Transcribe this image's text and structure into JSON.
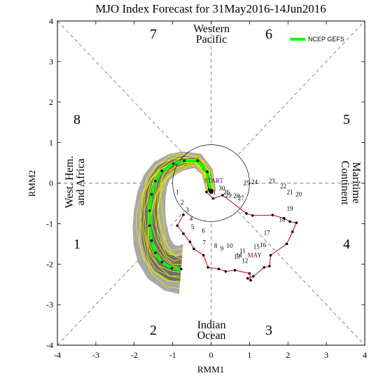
{
  "chart_data": {
    "type": "line",
    "title": "MJO Index Forecast for 31May2016-14Jun2016",
    "xlabel": "RMM1",
    "ylabel": "RMM2",
    "xlim": [
      -4,
      4
    ],
    "ylim": [
      -4,
      4
    ],
    "x_ticks": [
      "-4",
      "-3",
      "-2",
      "-1",
      "0",
      "1",
      "2",
      "3",
      "4"
    ],
    "y_ticks": [
      "-4",
      "-3",
      "-2",
      "-1",
      "0",
      "1",
      "2",
      "3",
      "4"
    ],
    "phases": [
      "1",
      "2",
      "3",
      "4",
      "5",
      "6",
      "7",
      "8"
    ],
    "regions": {
      "top": [
        "Western",
        "Pacific"
      ],
      "bottom": [
        "Indian",
        "Ocean"
      ],
      "left": [
        "West. Hem.",
        "and Africa"
      ],
      "right": [
        "Maritime",
        "Continent"
      ]
    },
    "amplitude_circle_radius": 1,
    "legend": {
      "label": "NCEP GEFS",
      "position": "top-right",
      "color": "#00ff00"
    },
    "colors": {
      "observed": "#cc0000",
      "forecast": "#00ff00",
      "members": "#e6e600",
      "spread_outer": "#a8a8a8",
      "spread_inner": "#6e6e6e",
      "start": "#5a0080",
      "month_label": "#8b0000"
    },
    "observed_path": {
      "month_label": "MAY",
      "start_label": "START",
      "points": [
        {
          "day": "1",
          "x": -0.72,
          "y": -0.78
        },
        {
          "day": "2",
          "x": -0.88,
          "y": -1.05
        },
        {
          "day": "3",
          "x": -0.72,
          "y": -1.25
        },
        {
          "day": "4",
          "x": -0.55,
          "y": -1.45
        },
        {
          "day": "5",
          "x": -0.45,
          "y": -1.62
        },
        {
          "day": "6",
          "x": -0.2,
          "y": -1.78
        },
        {
          "day": "7",
          "x": -0.08,
          "y": -2.08
        },
        {
          "day": "8",
          "x": 0.2,
          "y": -2.12
        },
        {
          "day": "9",
          "x": 0.38,
          "y": -2.18
        },
        {
          "day": "10",
          "x": 0.62,
          "y": -2.15
        },
        {
          "day": "11",
          "x": 1.0,
          "y": -2.23
        },
        {
          "day": "12",
          "x": 1.03,
          "y": -2.4
        },
        {
          "day": "13",
          "x": 0.95,
          "y": -2.35
        },
        {
          "day": "14",
          "x": 1.1,
          "y": -2.3
        },
        {
          "day": "15",
          "x": 1.38,
          "y": -2.08
        },
        {
          "day": "16",
          "x": 1.52,
          "y": -2.05
        },
        {
          "day": "17",
          "x": 1.55,
          "y": -1.78
        },
        {
          "day": "18",
          "x": 1.97,
          "y": -1.5
        },
        {
          "day": "19",
          "x": 2.12,
          "y": -1.2
        },
        {
          "day": "20",
          "x": 2.22,
          "y": -0.98
        },
        {
          "day": "21",
          "x": 2.05,
          "y": -0.95
        },
        {
          "day": "22",
          "x": 1.9,
          "y": -0.87
        },
        {
          "day": "23",
          "x": 1.6,
          "y": -0.79
        },
        {
          "day": "24",
          "x": 1.08,
          "y": -0.8
        },
        {
          "day": "25",
          "x": 0.92,
          "y": -0.75
        },
        {
          "day": "26",
          "x": 0.3,
          "y": -0.3
        },
        {
          "day": "27",
          "x": 0.05,
          "y": -0.38
        },
        {
          "day": "28",
          "x": -0.12,
          "y": -0.22
        },
        {
          "day": "29",
          "x": -0.05,
          "y": -0.15
        },
        {
          "day": "30",
          "x": -0.02,
          "y": -0.22
        },
        {
          "day": "31",
          "x": 0.0,
          "y": -0.2
        }
      ]
    },
    "observed_day_labels": [
      {
        "day": "1",
        "x": -0.88,
        "y": -0.28
      },
      {
        "day": "2",
        "x": -0.75,
        "y": -0.53
      },
      {
        "day": "3",
        "x": -0.62,
        "y": -0.72
      },
      {
        "day": "4",
        "x": -0.52,
        "y": -0.93
      },
      {
        "day": "5",
        "x": -0.48,
        "y": -1.13
      },
      {
        "day": "6",
        "x": -0.2,
        "y": -1.23
      },
      {
        "day": "7",
        "x": -0.18,
        "y": -1.52
      },
      {
        "day": "8",
        "x": 0.12,
        "y": -1.6
      },
      {
        "day": "9",
        "x": 0.28,
        "y": -1.67
      },
      {
        "day": "10",
        "x": 0.48,
        "y": -1.6
      },
      {
        "day": "11",
        "x": 0.82,
        "y": -1.73
      },
      {
        "day": "12",
        "x": 0.88,
        "y": -1.97
      },
      {
        "day": "13",
        "x": 0.67,
        "y": -1.87
      },
      {
        "day": "14",
        "x": 0.72,
        "y": -1.83
      },
      {
        "day": "15",
        "x": 1.18,
        "y": -1.62
      },
      {
        "day": "16",
        "x": 1.35,
        "y": -1.58
      },
      {
        "day": "17",
        "x": 1.45,
        "y": -1.28
      },
      {
        "day": "18",
        "x": 1.85,
        "y": -0.95
      },
      {
        "day": "19",
        "x": 2.05,
        "y": -0.68
      },
      {
        "day": "20",
        "x": 2.28,
        "y": -0.33
      },
      {
        "day": "21",
        "x": 2.05,
        "y": -0.28
      },
      {
        "day": "22",
        "x": 1.88,
        "y": -0.13
      },
      {
        "day": "23",
        "x": 1.58,
        "y": 0.0
      },
      {
        "day": "24",
        "x": 1.13,
        "y": -0.03
      },
      {
        "day": "25",
        "x": 0.92,
        "y": -0.05
      },
      {
        "day": "26",
        "x": 0.4,
        "y": -0.28
      },
      {
        "day": "27",
        "x": 0.78,
        "y": -0.42
      },
      {
        "day": "28",
        "x": 0.66,
        "y": -0.37
      },
      {
        "day": "29",
        "x": 0.45,
        "y": -0.35
      },
      {
        "day": "30",
        "x": 0.28,
        "y": -0.18
      },
      {
        "day": "31",
        "x": 0.05,
        "y": -0.28
      }
    ],
    "forecast_path": [
      {
        "x": 0.0,
        "y": -0.2
      },
      {
        "x": -0.1,
        "y": 0.28
      },
      {
        "x": -0.35,
        "y": 0.55
      },
      {
        "x": -0.7,
        "y": 0.55
      },
      {
        "x": -0.98,
        "y": 0.48
      },
      {
        "x": -1.28,
        "y": 0.3
      },
      {
        "x": -1.45,
        "y": 0.05
      },
      {
        "x": -1.55,
        "y": -0.28
      },
      {
        "x": -1.6,
        "y": -0.68
      },
      {
        "x": -1.6,
        "y": -1.05
      },
      {
        "x": -1.55,
        "y": -1.42
      },
      {
        "x": -1.45,
        "y": -1.72
      },
      {
        "x": -1.28,
        "y": -1.95
      },
      {
        "x": -1.02,
        "y": -2.1
      },
      {
        "x": -0.78,
        "y": -2.12
      }
    ]
  }
}
